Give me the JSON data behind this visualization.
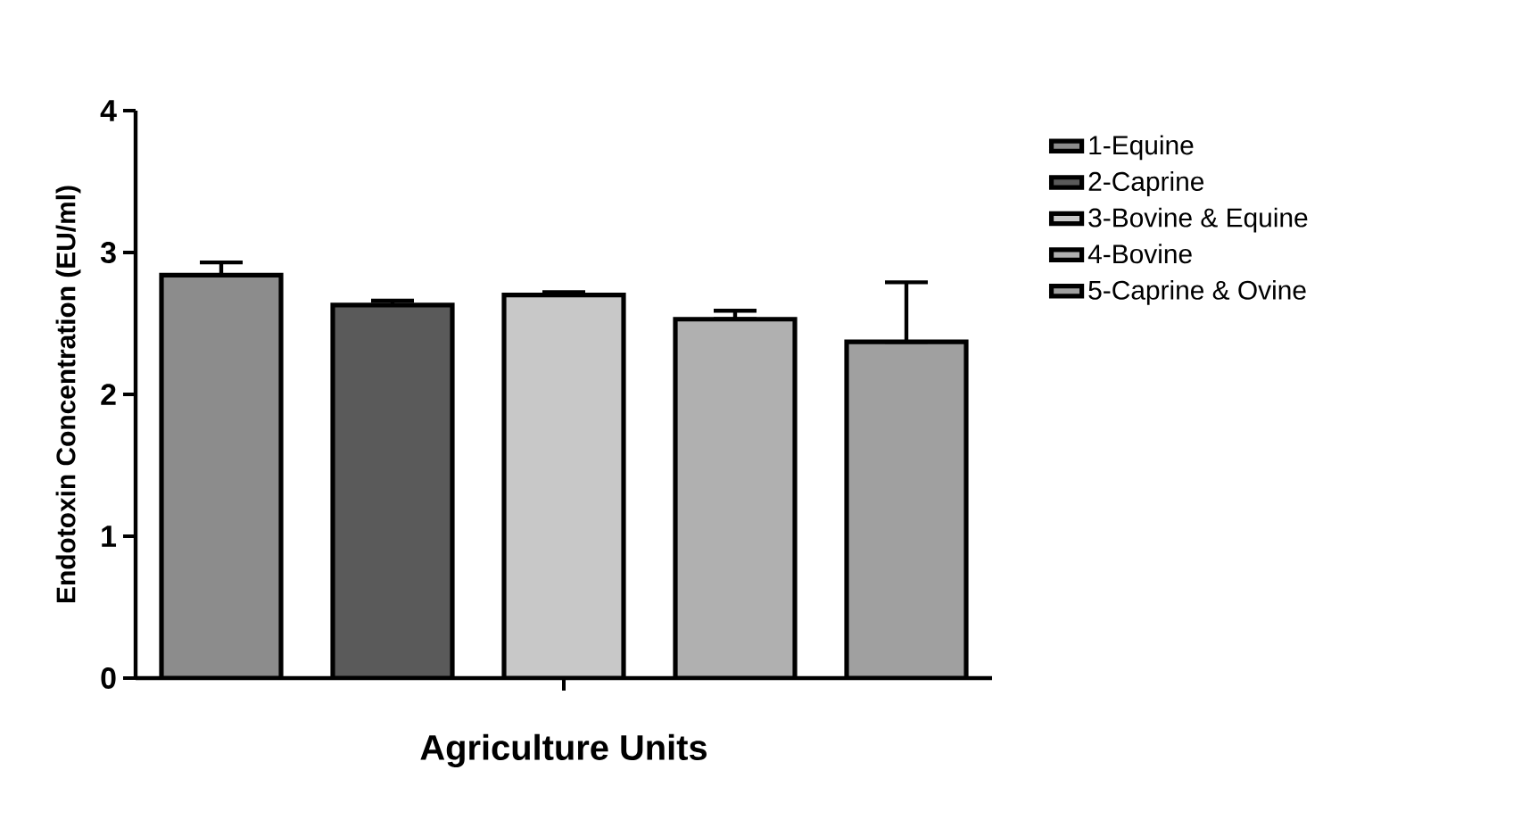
{
  "chart_data": {
    "type": "bar",
    "xlabel": "Agriculture Units",
    "ylabel": "Endotoxin Concentration (EU/ml)",
    "categories": [
      null
    ],
    "series": [
      {
        "name": "1-Equine",
        "color": "#8c8c8c",
        "values": [
          2.84
        ],
        "errors": [
          [
            2.84,
            2.93
          ]
        ]
      },
      {
        "name": "2-Caprine",
        "color": "#5a5a5a",
        "values": [
          2.63
        ],
        "errors": [
          [
            2.63,
            2.66
          ]
        ]
      },
      {
        "name": "3-Bovine & Equine",
        "color": "#c8c8c8",
        "values": [
          2.7
        ],
        "errors": [
          [
            2.7,
            2.72
          ]
        ]
      },
      {
        "name": "4-Bovine",
        "color": "#b0b0b0",
        "values": [
          2.53
        ],
        "errors": [
          [
            2.53,
            2.59
          ]
        ]
      },
      {
        "name": "5-Caprine & Ovine",
        "color": "#a0a0a0",
        "values": [
          2.37
        ],
        "errors": [
          [
            2.37,
            2.79
          ]
        ]
      }
    ],
    "ylim": [
      0,
      4
    ],
    "yticks": [
      0,
      1,
      2,
      3,
      4
    ],
    "grid": false,
    "legend": "right"
  }
}
